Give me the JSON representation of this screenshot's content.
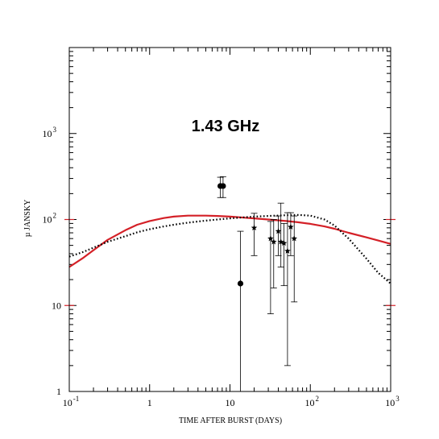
{
  "chart_data": {
    "type": "scatter",
    "title": "",
    "annotation": "1.43 GHz",
    "xlabel": "TIME AFTER BURST (DAYS)",
    "ylabel": "µ JANSKY",
    "xscale": "log",
    "yscale": "log",
    "xlim": [
      0.1,
      1000
    ],
    "ylim": [
      1,
      10000
    ],
    "grid": false,
    "x_ticks": [
      {
        "value": 0.1,
        "base": "10",
        "exp": "-1"
      },
      {
        "value": 1,
        "base": "1",
        "exp": ""
      },
      {
        "value": 10,
        "base": "10",
        "exp": ""
      },
      {
        "value": 100,
        "base": "10",
        "exp": "2"
      },
      {
        "value": 1000,
        "base": "10",
        "exp": "3"
      }
    ],
    "y_ticks": [
      {
        "value": 1,
        "base": "1",
        "exp": ""
      },
      {
        "value": 10,
        "base": "10",
        "exp": ""
      },
      {
        "value": 100,
        "base": "10",
        "exp": "2"
      },
      {
        "value": 1000,
        "base": "10",
        "exp": "3"
      }
    ],
    "colors": {
      "model_red": "#d42027",
      "model_dotted": "#000000",
      "data": "#000000",
      "ref_tick": "#d42027"
    },
    "series": [
      {
        "style": "solid-red-line",
        "x": [
          0.1,
          0.15,
          0.2,
          0.3,
          0.5,
          0.7,
          1,
          1.5,
          2,
          3,
          5,
          7,
          10,
          15,
          20,
          30,
          50,
          70,
          100,
          150,
          200,
          300,
          500,
          700,
          1000
        ],
        "y": [
          28,
          36,
          44,
          58,
          75,
          87,
          96,
          104,
          108,
          111,
          111,
          110,
          108,
          105,
          103,
          100,
          96,
          93,
          89,
          83,
          78,
          70,
          62,
          57,
          52
        ]
      },
      {
        "style": "dotted-black-line",
        "x": [
          0.1,
          0.15,
          0.2,
          0.3,
          0.5,
          0.7,
          1,
          1.5,
          2,
          3,
          5,
          7,
          10,
          15,
          20,
          30,
          50,
          70,
          100,
          150,
          200,
          300,
          500,
          700,
          1000
        ],
        "y": [
          37,
          42,
          47,
          55,
          64,
          71,
          77,
          83,
          87,
          92,
          97,
          100,
          103,
          106,
          108,
          110,
          112,
          113,
          111,
          100,
          85,
          60,
          35,
          24,
          18
        ]
      },
      {
        "style": "filled-circle-points",
        "points": [
          {
            "x": 7.6,
            "y": 245,
            "y_low": 180,
            "y_high": 310
          },
          {
            "x": 8.2,
            "y": 245,
            "y_low": 180,
            "y_high": 315
          },
          {
            "x": 13.5,
            "y": 18,
            "y_low": 1,
            "y_high": 73
          }
        ]
      },
      {
        "style": "star-points",
        "points": [
          {
            "x": 20,
            "y": 80,
            "y_low": 38,
            "y_high": 118
          },
          {
            "x": 32,
            "y": 60,
            "y_low": 8,
            "y_high": 95
          },
          {
            "x": 35,
            "y": 55,
            "y_low": 16,
            "y_high": 100
          },
          {
            "x": 40,
            "y": 73,
            "y_low": 38,
            "y_high": 110
          },
          {
            "x": 43,
            "y": 55,
            "y_low": 28,
            "y_high": 155
          },
          {
            "x": 47,
            "y": 53,
            "y_low": 17,
            "y_high": 90
          },
          {
            "x": 52,
            "y": 43,
            "y_low": 2,
            "y_high": 120
          },
          {
            "x": 57,
            "y": 82,
            "y_low": 38,
            "y_high": 120
          },
          {
            "x": 63,
            "y": 60,
            "y_low": 11,
            "y_high": 110
          }
        ]
      }
    ],
    "ref_ticks_y": [
      10,
      100
    ]
  }
}
